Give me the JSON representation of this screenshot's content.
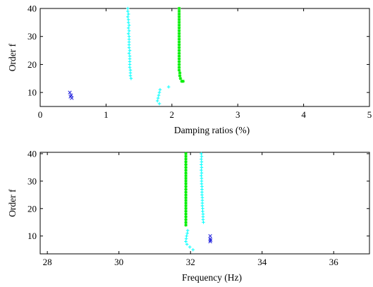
{
  "chart_data": [
    {
      "type": "scatter",
      "xlabel": "Damping ratios (%)",
      "ylabel": "Order f",
      "xlim": [
        0,
        5
      ],
      "ylim": [
        5,
        40
      ],
      "xticks": [
        0,
        1,
        2,
        3,
        4,
        5
      ],
      "yticks": [
        10,
        20,
        30,
        40
      ],
      "grid": false,
      "series": [
        {
          "color": "#00ffff",
          "marker": "plus",
          "points": [
            [
              1.33,
              40
            ],
            [
              1.33,
              39
            ],
            [
              1.34,
              38
            ],
            [
              1.33,
              37
            ],
            [
              1.34,
              36
            ],
            [
              1.34,
              35
            ],
            [
              1.35,
              34
            ],
            [
              1.34,
              33
            ],
            [
              1.35,
              32
            ],
            [
              1.34,
              31
            ],
            [
              1.35,
              30
            ],
            [
              1.35,
              29
            ],
            [
              1.35,
              28
            ],
            [
              1.35,
              27
            ],
            [
              1.35,
              26
            ],
            [
              1.36,
              25
            ],
            [
              1.35,
              24
            ],
            [
              1.36,
              23
            ],
            [
              1.36,
              22
            ],
            [
              1.36,
              21
            ],
            [
              1.36,
              20
            ],
            [
              1.36,
              19
            ],
            [
              1.37,
              18
            ],
            [
              1.37,
              17
            ],
            [
              1.37,
              16
            ],
            [
              1.38,
              15
            ],
            [
              1.82,
              11
            ],
            [
              1.81,
              10
            ],
            [
              1.8,
              9
            ],
            [
              1.79,
              8
            ],
            [
              1.78,
              7
            ],
            [
              1.81,
              6
            ],
            [
              1.95,
              12
            ]
          ]
        },
        {
          "color": "#00ee00",
          "marker": "star",
          "points": [
            [
              2.11,
              40
            ],
            [
              2.11,
              39
            ],
            [
              2.11,
              38
            ],
            [
              2.11,
              37
            ],
            [
              2.11,
              36
            ],
            [
              2.11,
              35
            ],
            [
              2.11,
              34
            ],
            [
              2.11,
              33
            ],
            [
              2.11,
              32
            ],
            [
              2.11,
              31
            ],
            [
              2.11,
              30
            ],
            [
              2.11,
              29
            ],
            [
              2.11,
              28
            ],
            [
              2.11,
              27
            ],
            [
              2.11,
              26
            ],
            [
              2.11,
              25
            ],
            [
              2.11,
              24
            ],
            [
              2.11,
              23
            ],
            [
              2.11,
              22
            ],
            [
              2.11,
              21
            ],
            [
              2.11,
              20
            ],
            [
              2.11,
              19
            ],
            [
              2.11,
              18
            ],
            [
              2.12,
              17
            ],
            [
              2.12,
              16
            ],
            [
              2.13,
              15
            ],
            [
              2.15,
              14
            ],
            [
              2.17,
              14
            ]
          ]
        },
        {
          "color": "#2222dd",
          "marker": "x",
          "points": [
            [
              0.45,
              10
            ],
            [
              0.47,
              9
            ],
            [
              0.46,
              8.5
            ],
            [
              0.48,
              8
            ]
          ]
        }
      ]
    },
    {
      "type": "scatter",
      "xlabel": "Frequency (Hz)",
      "ylabel": "Order f",
      "xlim": [
        27.8,
        37
      ],
      "ylim": [
        3.5,
        40.5
      ],
      "xticks": [
        28,
        30,
        32,
        34,
        36
      ],
      "yticks": [
        10,
        20,
        30,
        40
      ],
      "grid": false,
      "series": [
        {
          "color": "#00ffff",
          "marker": "plus",
          "points": [
            [
              32.3,
              40
            ],
            [
              32.31,
              39
            ],
            [
              32.3,
              38
            ],
            [
              32.31,
              37
            ],
            [
              32.3,
              36
            ],
            [
              32.31,
              35
            ],
            [
              32.3,
              34
            ],
            [
              32.31,
              33
            ],
            [
              32.3,
              32
            ],
            [
              32.31,
              31
            ],
            [
              32.31,
              30
            ],
            [
              32.31,
              29
            ],
            [
              32.32,
              28
            ],
            [
              32.32,
              27
            ],
            [
              32.32,
              26
            ],
            [
              32.32,
              25
            ],
            [
              32.33,
              24
            ],
            [
              32.33,
              23
            ],
            [
              32.33,
              22
            ],
            [
              32.33,
              21
            ],
            [
              32.34,
              20
            ],
            [
              32.34,
              19
            ],
            [
              32.35,
              18
            ],
            [
              32.35,
              17
            ],
            [
              32.35,
              16
            ],
            [
              32.36,
              15
            ],
            [
              31.92,
              12
            ],
            [
              31.91,
              11
            ],
            [
              31.89,
              10
            ],
            [
              31.88,
              9
            ],
            [
              31.87,
              8
            ],
            [
              31.9,
              7
            ],
            [
              31.98,
              6
            ],
            [
              32.07,
              5
            ]
          ]
        },
        {
          "color": "#00ee00",
          "marker": "star",
          "points": [
            [
              31.87,
              40
            ],
            [
              31.87,
              39
            ],
            [
              31.87,
              38
            ],
            [
              31.87,
              37
            ],
            [
              31.87,
              36
            ],
            [
              31.87,
              35
            ],
            [
              31.87,
              34
            ],
            [
              31.87,
              33
            ],
            [
              31.87,
              32
            ],
            [
              31.87,
              31
            ],
            [
              31.87,
              30
            ],
            [
              31.87,
              29
            ],
            [
              31.87,
              28
            ],
            [
              31.87,
              27
            ],
            [
              31.87,
              26
            ],
            [
              31.87,
              25
            ],
            [
              31.87,
              24
            ],
            [
              31.87,
              23
            ],
            [
              31.87,
              22
            ],
            [
              31.87,
              21
            ],
            [
              31.87,
              20
            ],
            [
              31.87,
              19
            ],
            [
              31.87,
              18
            ],
            [
              31.87,
              17
            ],
            [
              31.87,
              16
            ],
            [
              31.87,
              15
            ],
            [
              31.87,
              14
            ]
          ]
        },
        {
          "color": "#2222dd",
          "marker": "x",
          "points": [
            [
              32.55,
              10
            ],
            [
              32.55,
              9
            ],
            [
              32.56,
              8.5
            ],
            [
              32.55,
              8
            ]
          ]
        }
      ]
    }
  ]
}
